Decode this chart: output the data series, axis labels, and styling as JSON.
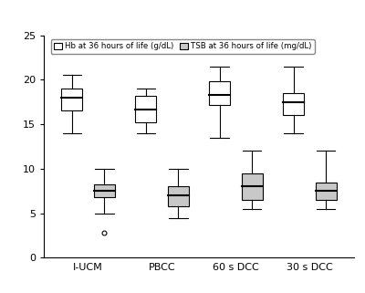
{
  "categories": [
    "I-UCM",
    "PBCC",
    "60 s DCC",
    "30 s DCC"
  ],
  "hb": {
    "whisker_low": [
      14.0,
      14.0,
      13.5,
      14.0
    ],
    "q1": [
      16.5,
      15.2,
      17.2,
      16.0
    ],
    "median": [
      18.0,
      16.6,
      18.3,
      17.5
    ],
    "q3": [
      19.0,
      18.2,
      19.8,
      18.5
    ],
    "whisker_high": [
      20.5,
      19.0,
      21.5,
      21.5
    ]
  },
  "tsb": {
    "whisker_low": [
      5.0,
      4.5,
      5.5,
      5.5
    ],
    "q1": [
      6.8,
      5.8,
      6.5,
      6.5
    ],
    "median": [
      7.5,
      7.0,
      8.0,
      7.5
    ],
    "q3": [
      8.2,
      8.0,
      9.5,
      8.5
    ],
    "whisker_high": [
      10.0,
      10.0,
      12.0,
      12.0
    ],
    "outliers_x": [
      1
    ],
    "outliers_y": [
      2.8
    ]
  },
  "hb_color": "#ffffff",
  "tsb_color": "#c8c8c8",
  "box_edgecolor": "#000000",
  "ylim": [
    0,
    25
  ],
  "yticks": [
    0,
    5,
    10,
    15,
    20,
    25
  ],
  "legend_hb": "Hb at 36 hours of life (g/dL)",
  "legend_tsb": "TSB at 36 hours of life (mg/dL)",
  "figsize": [
    4.0,
    3.21
  ],
  "dpi": 100,
  "box_width": 0.28,
  "offsets": [
    -0.22,
    0.22
  ]
}
